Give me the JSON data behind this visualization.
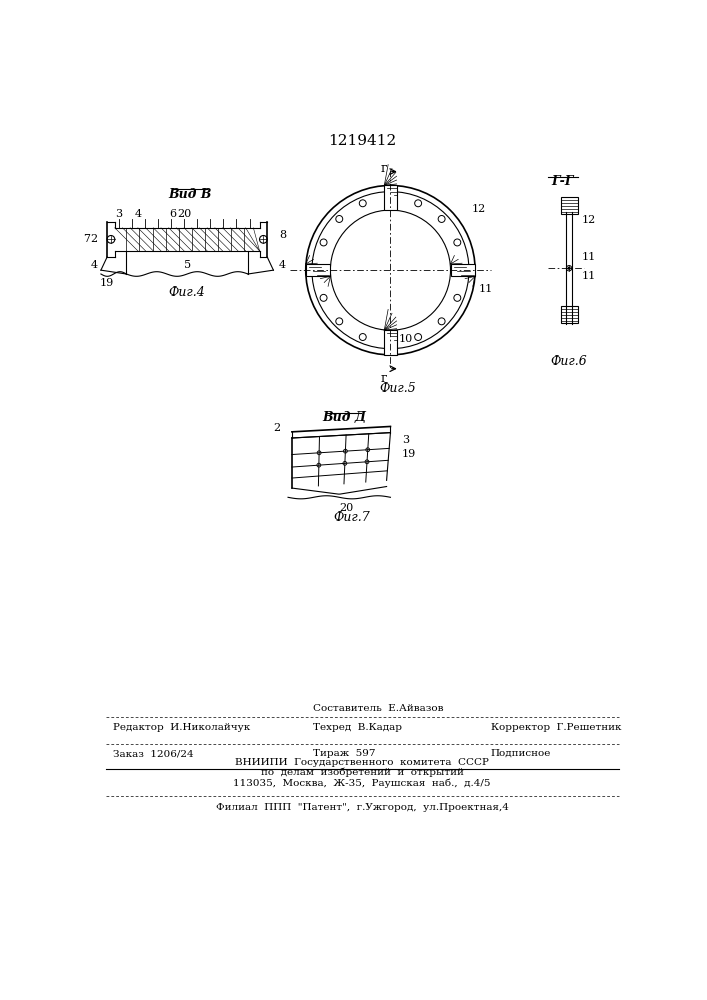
{
  "patent_number": "1219412",
  "bg": "#ffffff",
  "fig4_label": "Фиг.4",
  "fig5_label": "Фиг.5",
  "fig6_label": "Фиг.6",
  "fig7_label": "Фиг.7",
  "vid_b": "Вид В",
  "vid_d": "Вид Д",
  "gg": "Г-Г",
  "label_r": "г",
  "fl1_left": "Редактор  И.Николайчук",
  "fl1_c1": "Составитель  Е.Айвазов",
  "fl1_c2": "Техред  В.Кадар",
  "fl1_right": "Корректор  Г.Решетник",
  "fl2_left": "Заказ  1206/24",
  "fl2_center": "Тираж  597",
  "fl2_right": "Подписное",
  "fl3": "ВНИИПИ  Государственного  комитета  СССР",
  "fl4": "по  делам  изобретений  и  открытий",
  "fl5": "113035,  Москва,  Ж-35,  Раушская  наб.,  д.4/5",
  "fl6": "Филиал  ППП  \"Патент\",  г.Ужгород,  ул.Проектная,4"
}
